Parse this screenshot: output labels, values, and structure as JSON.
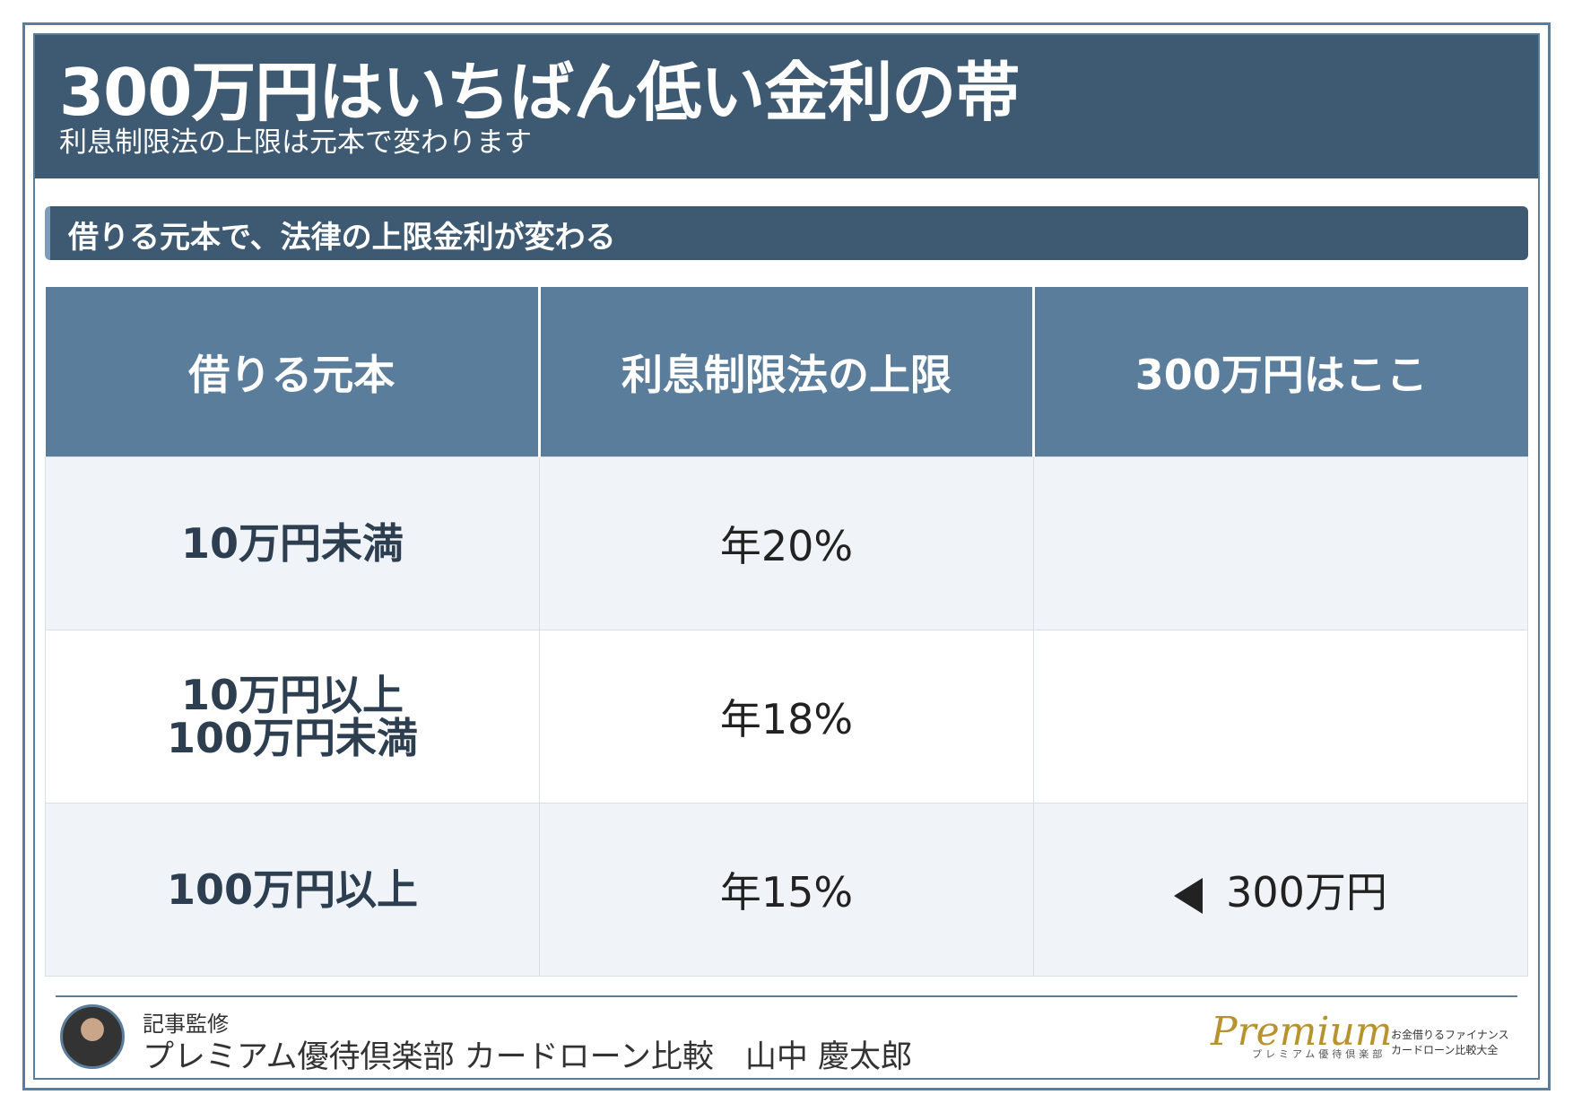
{
  "header": {
    "title": "300万円はいちばん低い金利の帯",
    "subtitle": "利息制限法の上限は元本で変わります"
  },
  "section": {
    "heading": "借りる元本で、法律の上限金利が変わる"
  },
  "table": {
    "headers": [
      "借りる元本",
      "利息制限法の上限",
      "300万円はここ"
    ],
    "rows": [
      {
        "principal": "10万円未満",
        "limit": "年20%"
      },
      {
        "principal": "10万円以上\n100万円未満",
        "limit": "年18%"
      },
      {
        "principal": "100万円以上",
        "limit": "年15%",
        "marker": "300万円"
      }
    ]
  },
  "footer": {
    "label": "記事監修",
    "author": "プレミアム優待倶楽部 カードローン比較　山中 慶太郎",
    "logo": {
      "name": "Premium",
      "sub": "プレミアム優待倶楽部",
      "line1": "お金借りるファイナンス",
      "line2": "カードローン比較大全"
    }
  }
}
